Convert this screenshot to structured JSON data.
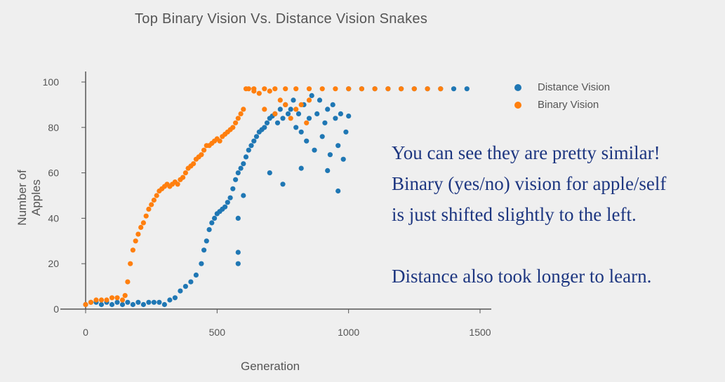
{
  "chart_data": {
    "type": "scatter",
    "title": "Top Binary Vision Vs. Distance Vision Snakes",
    "xlabel": "Generation",
    "ylabel": "Number of Apples",
    "xlim": [
      0,
      1500
    ],
    "ylim": [
      0,
      100
    ],
    "xticks": [
      0,
      500,
      1000,
      1500
    ],
    "yticks": [
      0,
      20,
      40,
      60,
      80,
      100
    ],
    "grid": false,
    "legend_position": "top-right",
    "series": [
      {
        "name": "Distance Vision",
        "color": "#1f77b4",
        "points": [
          [
            0,
            2
          ],
          [
            20,
            3
          ],
          [
            40,
            3
          ],
          [
            60,
            2
          ],
          [
            80,
            3
          ],
          [
            100,
            2
          ],
          [
            120,
            3
          ],
          [
            140,
            2
          ],
          [
            160,
            3
          ],
          [
            180,
            2
          ],
          [
            200,
            3
          ],
          [
            220,
            2
          ],
          [
            240,
            3
          ],
          [
            260,
            3
          ],
          [
            280,
            3
          ],
          [
            300,
            2
          ],
          [
            320,
            4
          ],
          [
            340,
            5
          ],
          [
            360,
            8
          ],
          [
            380,
            10
          ],
          [
            400,
            12
          ],
          [
            420,
            15
          ],
          [
            440,
            20
          ],
          [
            450,
            26
          ],
          [
            460,
            30
          ],
          [
            470,
            35
          ],
          [
            480,
            38
          ],
          [
            490,
            40
          ],
          [
            500,
            42
          ],
          [
            510,
            43
          ],
          [
            520,
            44
          ],
          [
            530,
            45
          ],
          [
            540,
            47
          ],
          [
            550,
            49
          ],
          [
            560,
            53
          ],
          [
            570,
            57
          ],
          [
            580,
            60
          ],
          [
            590,
            62
          ],
          [
            600,
            64
          ],
          [
            610,
            67
          ],
          [
            620,
            70
          ],
          [
            630,
            72
          ],
          [
            640,
            74
          ],
          [
            650,
            76
          ],
          [
            660,
            78
          ],
          [
            670,
            79
          ],
          [
            680,
            80
          ],
          [
            690,
            82
          ],
          [
            700,
            84
          ],
          [
            710,
            85
          ],
          [
            720,
            86
          ],
          [
            730,
            82
          ],
          [
            740,
            88
          ],
          [
            750,
            84
          ],
          [
            760,
            90
          ],
          [
            770,
            86
          ],
          [
            780,
            88
          ],
          [
            790,
            92
          ],
          [
            800,
            80
          ],
          [
            810,
            86
          ],
          [
            820,
            78
          ],
          [
            830,
            90
          ],
          [
            840,
            74
          ],
          [
            850,
            84
          ],
          [
            860,
            94
          ],
          [
            870,
            70
          ],
          [
            880,
            86
          ],
          [
            890,
            92
          ],
          [
            900,
            76
          ],
          [
            910,
            82
          ],
          [
            920,
            88
          ],
          [
            930,
            68
          ],
          [
            940,
            90
          ],
          [
            950,
            84
          ],
          [
            960,
            72
          ],
          [
            970,
            86
          ],
          [
            980,
            66
          ],
          [
            990,
            78
          ],
          [
            1000,
            85
          ],
          [
            920,
            61
          ],
          [
            960,
            52
          ],
          [
            700,
            60
          ],
          [
            750,
            55
          ],
          [
            820,
            62
          ],
          [
            600,
            50
          ],
          [
            580,
            40
          ],
          [
            580,
            25
          ],
          [
            580,
            20
          ],
          [
            1000,
            97
          ],
          [
            1050,
            97
          ],
          [
            1100,
            97
          ],
          [
            1150,
            97
          ],
          [
            1200,
            97
          ],
          [
            1250,
            97
          ],
          [
            1300,
            97
          ],
          [
            1350,
            97
          ],
          [
            1400,
            97
          ],
          [
            1450,
            97
          ]
        ]
      },
      {
        "name": "Binary Vision",
        "color": "#ff7f0e",
        "points": [
          [
            0,
            2
          ],
          [
            20,
            3
          ],
          [
            40,
            4
          ],
          [
            60,
            4
          ],
          [
            80,
            4
          ],
          [
            100,
            5
          ],
          [
            120,
            5
          ],
          [
            140,
            4
          ],
          [
            150,
            6
          ],
          [
            160,
            12
          ],
          [
            170,
            20
          ],
          [
            180,
            26
          ],
          [
            190,
            30
          ],
          [
            200,
            33
          ],
          [
            210,
            36
          ],
          [
            220,
            38
          ],
          [
            230,
            41
          ],
          [
            240,
            44
          ],
          [
            250,
            46
          ],
          [
            260,
            48
          ],
          [
            270,
            50
          ],
          [
            280,
            52
          ],
          [
            290,
            53
          ],
          [
            300,
            54
          ],
          [
            310,
            55
          ],
          [
            320,
            54
          ],
          [
            330,
            55
          ],
          [
            340,
            56
          ],
          [
            350,
            55
          ],
          [
            360,
            57
          ],
          [
            370,
            58
          ],
          [
            380,
            60
          ],
          [
            390,
            62
          ],
          [
            400,
            63
          ],
          [
            410,
            64
          ],
          [
            420,
            66
          ],
          [
            430,
            67
          ],
          [
            440,
            68
          ],
          [
            450,
            70
          ],
          [
            460,
            72
          ],
          [
            470,
            72
          ],
          [
            480,
            73
          ],
          [
            490,
            74
          ],
          [
            500,
            75
          ],
          [
            510,
            74
          ],
          [
            520,
            76
          ],
          [
            530,
            77
          ],
          [
            540,
            78
          ],
          [
            550,
            79
          ],
          [
            560,
            80
          ],
          [
            570,
            82
          ],
          [
            580,
            84
          ],
          [
            590,
            86
          ],
          [
            600,
            88
          ],
          [
            610,
            97
          ],
          [
            620,
            97
          ],
          [
            640,
            96
          ],
          [
            660,
            95
          ],
          [
            680,
            88
          ],
          [
            700,
            96
          ],
          [
            720,
            86
          ],
          [
            740,
            92
          ],
          [
            760,
            90
          ],
          [
            780,
            84
          ],
          [
            800,
            88
          ],
          [
            820,
            90
          ],
          [
            840,
            82
          ],
          [
            850,
            92
          ],
          [
            640,
            97
          ],
          [
            680,
            97
          ],
          [
            720,
            97
          ],
          [
            760,
            97
          ],
          [
            800,
            97
          ],
          [
            850,
            97
          ],
          [
            900,
            97
          ],
          [
            950,
            97
          ],
          [
            1000,
            97
          ],
          [
            1050,
            97
          ],
          [
            1100,
            97
          ],
          [
            1150,
            97
          ],
          [
            1200,
            97
          ],
          [
            1250,
            97
          ],
          [
            1300,
            97
          ],
          [
            1350,
            97
          ]
        ]
      }
    ]
  },
  "annotation": {
    "line1": "You can see they are pretty similar!",
    "line2": "Binary (yes/no) vision for apple/self",
    "line3": "is just shifted slightly to the left.",
    "line4": "Distance also took longer to learn."
  }
}
